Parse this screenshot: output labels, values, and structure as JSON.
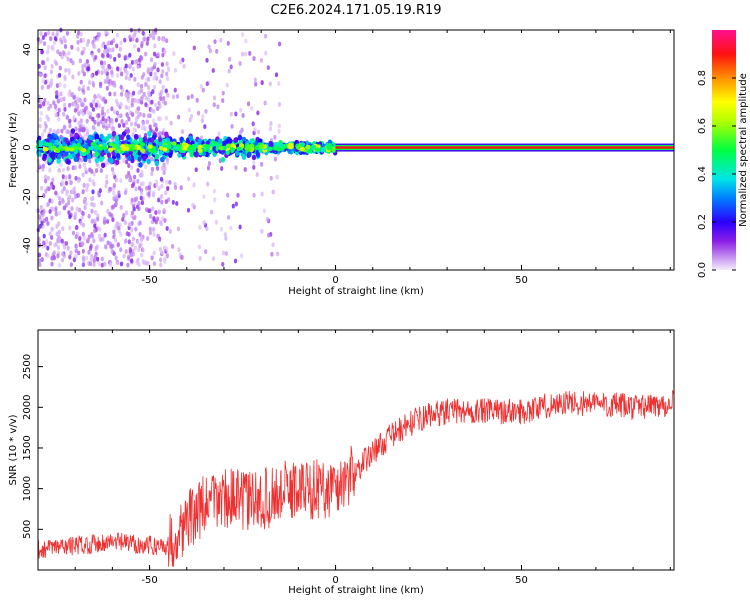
{
  "title": "C2E6.2024.171.05.19.R19",
  "chart_data": [
    {
      "type": "heatmap",
      "xlabel": "Height of straight line (km)",
      "ylabel": "Frequency (Hz)",
      "xlim": [
        -80,
        91
      ],
      "ylim": [
        -50,
        48
      ],
      "x_ticks": [
        -50,
        0,
        50
      ],
      "y_ticks": [
        -40,
        -20,
        0,
        20,
        40
      ],
      "colorbar": {
        "label": "Normalized spectral amplitude",
        "range": [
          0,
          1
        ],
        "ticks": [
          0.0,
          0.2,
          0.4,
          0.6,
          0.8
        ],
        "colormap": "hsv-like (purple-blue-cyan-green-yellow-orange-red-magenta)"
      },
      "features": {
        "line_center_hz": 0,
        "line_from_km": 0,
        "line_to_km": 91,
        "wide_band_from_km": -80,
        "wide_band_to_km": -45,
        "scatter_spread_hz": 48
      }
    },
    {
      "type": "line",
      "xlabel": "Height of straight line (km)",
      "ylabel": "SNR (10 * v/v)",
      "xlim": [
        -80,
        91
      ],
      "ylim": [
        0,
        2950
      ],
      "x_ticks": [
        -50,
        0,
        50
      ],
      "y_ticks": [
        500,
        1000,
        1500,
        2000,
        2500
      ],
      "color": "#f03030",
      "series": [
        {
          "x": [
            -80,
            -70,
            -60,
            -50,
            -45,
            -40,
            -35,
            -30,
            -25,
            -20,
            -15,
            -10,
            -5,
            0,
            5,
            10,
            15,
            20,
            25,
            30,
            40,
            50,
            60,
            70,
            80,
            91
          ],
          "values": [
            250,
            300,
            350,
            300,
            300,
            600,
            800,
            900,
            850,
            850,
            950,
            1000,
            1000,
            1000,
            1200,
            1450,
            1650,
            1800,
            1900,
            1950,
            1950,
            1950,
            2050,
            2050,
            2000,
            2050
          ]
        }
      ]
    }
  ]
}
